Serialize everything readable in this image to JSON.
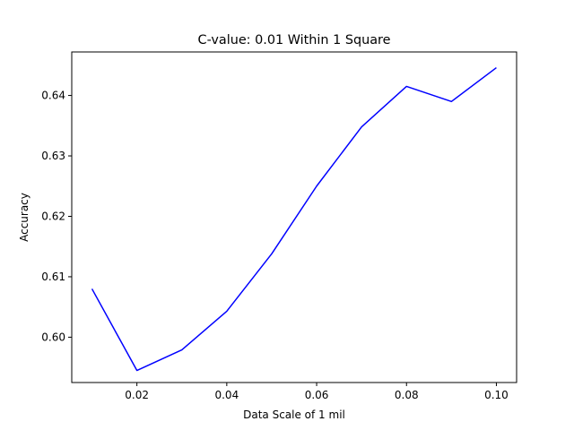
{
  "chart_data": {
    "type": "line",
    "title": "C-value: 0.01 Within 1 Square",
    "xlabel": "Data Scale of 1 mil",
    "ylabel": "Accuracy",
    "xlim": [
      0.0055,
      0.1045
    ],
    "ylim": [
      0.5925,
      0.6472
    ],
    "grid": false,
    "xticks": [
      0.02,
      0.04,
      0.06,
      0.08,
      0.1
    ],
    "xtick_labels": [
      "0.02",
      "0.04",
      "0.06",
      "0.08",
      "0.10"
    ],
    "yticks": [
      0.6,
      0.61,
      0.62,
      0.63,
      0.64
    ],
    "ytick_labels": [
      "0.60",
      "0.61",
      "0.62",
      "0.63",
      "0.64"
    ],
    "series": [
      {
        "color": "#0000ff",
        "x": [
          0.01,
          0.02,
          0.03,
          0.04,
          0.05,
          0.06,
          0.07,
          0.08,
          0.09,
          0.1
        ],
        "y": [
          0.608,
          0.5945,
          0.5979,
          0.6043,
          0.6138,
          0.625,
          0.6348,
          0.6415,
          0.639,
          0.6446
        ]
      }
    ]
  }
}
